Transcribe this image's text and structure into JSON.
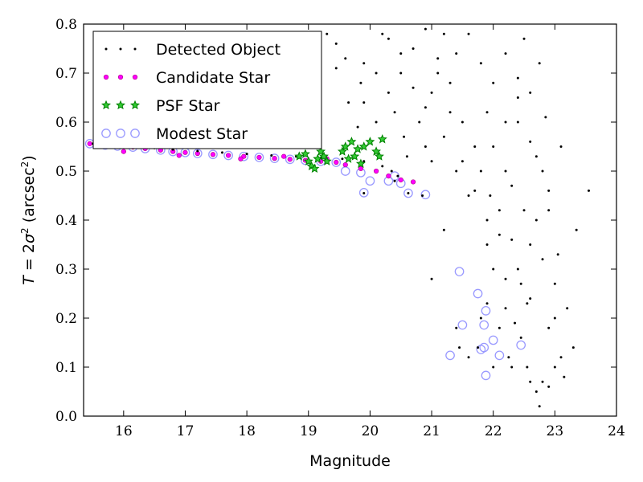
{
  "chart_data": {
    "type": "scatter",
    "xlabel": "Magnitude",
    "ylabel_parts": {
      "t": "T",
      "eq": " = 2",
      "sigma": "σ",
      "sup2": "2",
      "unit_open": " (arcsec",
      "unit_sup": "2",
      "unit_close": ")"
    },
    "xlim": [
      15.35,
      24.0
    ],
    "ylim": [
      0.0,
      0.8
    ],
    "x_ticks": [
      "16",
      "17",
      "18",
      "19",
      "20",
      "21",
      "22",
      "23",
      "24"
    ],
    "y_ticks": [
      "0.0",
      "0.1",
      "0.2",
      "0.3",
      "0.4",
      "0.5",
      "0.6",
      "0.7",
      "0.8"
    ],
    "legend_position": "upper-left",
    "grid": false,
    "colors": {
      "detected": "#000000",
      "candidate": "#ff00ff",
      "psf": "#008000",
      "modest": "#9999ff"
    },
    "legend": [
      "Detected Object",
      "Candidate Star",
      "PSF Star",
      "Modest Star"
    ],
    "series": [
      {
        "name": "Detected Object",
        "marker": "dot",
        "points": [
          [
            15.5,
            0.556
          ],
          [
            15.8,
            0.553
          ],
          [
            16.1,
            0.55
          ],
          [
            16.5,
            0.547
          ],
          [
            16.8,
            0.544
          ],
          [
            17.2,
            0.541
          ],
          [
            17.6,
            0.538
          ],
          [
            18.0,
            0.535
          ],
          [
            18.4,
            0.532
          ],
          [
            18.8,
            0.53
          ],
          [
            19.2,
            0.527
          ],
          [
            19.55,
            0.525
          ],
          [
            19.9,
            0.52
          ],
          [
            20.2,
            0.51
          ],
          [
            20.35,
            0.5
          ],
          [
            20.45,
            0.49
          ],
          [
            20.62,
            0.455
          ],
          [
            20.85,
            0.45
          ],
          [
            19.9,
            0.455
          ],
          [
            20.4,
            0.48
          ],
          [
            19.65,
            0.64
          ],
          [
            19.8,
            0.59
          ],
          [
            19.85,
            0.68
          ],
          [
            19.9,
            0.64
          ],
          [
            19.45,
            0.71
          ],
          [
            19.3,
            0.78
          ],
          [
            19.9,
            0.72
          ],
          [
            19.45,
            0.76
          ],
          [
            19.6,
            0.73
          ],
          [
            20.55,
            0.57
          ],
          [
            20.9,
            0.55
          ],
          [
            21.2,
            0.38
          ],
          [
            21.0,
            0.28
          ],
          [
            21.4,
            0.18
          ],
          [
            21.45,
            0.14
          ],
          [
            21.6,
            0.12
          ],
          [
            21.75,
            0.14
          ],
          [
            21.8,
            0.2
          ],
          [
            21.9,
            0.23
          ],
          [
            22.0,
            0.1
          ],
          [
            22.1,
            0.18
          ],
          [
            22.25,
            0.12
          ],
          [
            22.3,
            0.1
          ],
          [
            22.45,
            0.16
          ],
          [
            22.55,
            0.1
          ],
          [
            22.6,
            0.07
          ],
          [
            22.7,
            0.05
          ],
          [
            22.75,
            0.02
          ],
          [
            22.8,
            0.07
          ],
          [
            22.9,
            0.06
          ],
          [
            23.0,
            0.1
          ],
          [
            23.1,
            0.12
          ],
          [
            23.15,
            0.08
          ],
          [
            23.2,
            0.22
          ],
          [
            23.3,
            0.14
          ],
          [
            23.0,
            0.27
          ],
          [
            22.8,
            0.32
          ],
          [
            22.7,
            0.4
          ],
          [
            22.6,
            0.24
          ],
          [
            22.4,
            0.3
          ],
          [
            22.2,
            0.28
          ],
          [
            22.0,
            0.3
          ],
          [
            21.9,
            0.35
          ],
          [
            22.1,
            0.42
          ],
          [
            22.3,
            0.36
          ],
          [
            22.9,
            0.46
          ],
          [
            23.1,
            0.55
          ],
          [
            23.35,
            0.38
          ],
          [
            23.55,
            0.46
          ],
          [
            22.85,
            0.61
          ],
          [
            22.6,
            0.66
          ],
          [
            22.75,
            0.72
          ],
          [
            22.5,
            0.77
          ],
          [
            22.4,
            0.6
          ],
          [
            22.2,
            0.5
          ],
          [
            21.95,
            0.45
          ],
          [
            21.7,
            0.55
          ],
          [
            21.5,
            0.6
          ],
          [
            21.3,
            0.68
          ],
          [
            21.1,
            0.73
          ],
          [
            20.9,
            0.79
          ],
          [
            20.7,
            0.75
          ],
          [
            20.5,
            0.7
          ],
          [
            20.3,
            0.66
          ],
          [
            20.1,
            0.6
          ],
          [
            20.2,
            0.78
          ],
          [
            20.4,
            0.62
          ],
          [
            20.6,
            0.53
          ],
          [
            20.8,
            0.6
          ],
          [
            21.0,
            0.66
          ],
          [
            21.2,
            0.57
          ],
          [
            21.4,
            0.5
          ],
          [
            21.6,
            0.45
          ],
          [
            21.8,
            0.5
          ],
          [
            22.0,
            0.55
          ],
          [
            22.2,
            0.6
          ],
          [
            22.4,
            0.65
          ],
          [
            22.6,
            0.56
          ],
          [
            22.8,
            0.5
          ],
          [
            22.5,
            0.42
          ],
          [
            22.3,
            0.47
          ],
          [
            22.1,
            0.37
          ],
          [
            21.9,
            0.4
          ],
          [
            21.7,
            0.46
          ],
          [
            21.5,
            0.52
          ],
          [
            21.3,
            0.62
          ],
          [
            21.1,
            0.7
          ],
          [
            20.9,
            0.63
          ],
          [
            20.7,
            0.67
          ],
          [
            20.5,
            0.74
          ],
          [
            20.3,
            0.77
          ],
          [
            20.1,
            0.7
          ],
          [
            21.6,
            0.78
          ],
          [
            21.8,
            0.72
          ],
          [
            22.0,
            0.68
          ],
          [
            22.2,
            0.74
          ],
          [
            22.4,
            0.69
          ],
          [
            21.4,
            0.74
          ],
          [
            21.2,
            0.78
          ],
          [
            21.0,
            0.52
          ],
          [
            21.9,
            0.62
          ],
          [
            22.7,
            0.53
          ],
          [
            22.9,
            0.42
          ],
          [
            23.05,
            0.33
          ],
          [
            22.6,
            0.35
          ],
          [
            22.45,
            0.27
          ],
          [
            22.2,
            0.22
          ],
          [
            22.35,
            0.19
          ],
          [
            22.55,
            0.23
          ],
          [
            22.9,
            0.18
          ],
          [
            23.0,
            0.2
          ]
        ]
      },
      {
        "name": "Candidate Star",
        "marker": "small-circle",
        "points": [
          [
            15.45,
            0.556
          ],
          [
            15.7,
            0.553
          ],
          [
            15.9,
            0.551
          ],
          [
            16.15,
            0.549
          ],
          [
            16.35,
            0.546
          ],
          [
            16.6,
            0.543
          ],
          [
            16.8,
            0.54
          ],
          [
            17.0,
            0.538
          ],
          [
            17.2,
            0.536
          ],
          [
            17.45,
            0.534
          ],
          [
            17.7,
            0.532
          ],
          [
            17.95,
            0.53
          ],
          [
            18.2,
            0.528
          ],
          [
            18.45,
            0.526
          ],
          [
            18.7,
            0.524
          ],
          [
            18.95,
            0.522
          ],
          [
            19.2,
            0.52
          ],
          [
            19.45,
            0.518
          ],
          [
            19.6,
            0.513
          ],
          [
            19.85,
            0.505
          ],
          [
            20.1,
            0.5
          ],
          [
            20.3,
            0.49
          ],
          [
            20.5,
            0.482
          ],
          [
            20.7,
            0.478
          ],
          [
            16.0,
            0.54
          ],
          [
            16.9,
            0.532
          ],
          [
            17.9,
            0.525
          ],
          [
            18.6,
            0.53
          ],
          [
            19.3,
            0.525
          ]
        ]
      },
      {
        "name": "PSF Star",
        "marker": "star",
        "points": [
          [
            18.85,
            0.53
          ],
          [
            18.95,
            0.535
          ],
          [
            19.0,
            0.52
          ],
          [
            19.05,
            0.51
          ],
          [
            19.1,
            0.505
          ],
          [
            19.15,
            0.525
          ],
          [
            19.2,
            0.54
          ],
          [
            19.25,
            0.53
          ],
          [
            19.3,
            0.52
          ],
          [
            19.55,
            0.54
          ],
          [
            19.6,
            0.55
          ],
          [
            19.65,
            0.525
          ],
          [
            19.7,
            0.56
          ],
          [
            19.75,
            0.53
          ],
          [
            19.8,
            0.545
          ],
          [
            19.85,
            0.515
          ],
          [
            19.9,
            0.55
          ],
          [
            20.0,
            0.56
          ],
          [
            20.1,
            0.54
          ],
          [
            20.15,
            0.53
          ],
          [
            20.2,
            0.565
          ]
        ]
      },
      {
        "name": "Modest Star",
        "marker": "ring",
        "points": [
          [
            15.45,
            0.556
          ],
          [
            15.7,
            0.553
          ],
          [
            15.9,
            0.551
          ],
          [
            16.15,
            0.549
          ],
          [
            16.35,
            0.546
          ],
          [
            16.6,
            0.543
          ],
          [
            16.8,
            0.54
          ],
          [
            17.0,
            0.538
          ],
          [
            17.2,
            0.536
          ],
          [
            17.45,
            0.534
          ],
          [
            17.7,
            0.532
          ],
          [
            17.95,
            0.53
          ],
          [
            18.2,
            0.528
          ],
          [
            18.45,
            0.526
          ],
          [
            18.7,
            0.524
          ],
          [
            18.95,
            0.522
          ],
          [
            19.2,
            0.52
          ],
          [
            19.45,
            0.518
          ],
          [
            19.6,
            0.5
          ],
          [
            19.85,
            0.497
          ],
          [
            20.0,
            0.48
          ],
          [
            20.3,
            0.48
          ],
          [
            20.4,
            0.49
          ],
          [
            20.5,
            0.475
          ],
          [
            19.9,
            0.456
          ],
          [
            20.62,
            0.455
          ],
          [
            20.9,
            0.452
          ],
          [
            21.3,
            0.124
          ],
          [
            21.45,
            0.295
          ],
          [
            21.5,
            0.186
          ],
          [
            21.75,
            0.25
          ],
          [
            21.8,
            0.136
          ],
          [
            21.85,
            0.14
          ],
          [
            21.85,
            0.186
          ],
          [
            21.88,
            0.215
          ],
          [
            21.88,
            0.083
          ],
          [
            22.0,
            0.155
          ],
          [
            22.1,
            0.124
          ],
          [
            22.45,
            0.145
          ]
        ]
      }
    ]
  }
}
